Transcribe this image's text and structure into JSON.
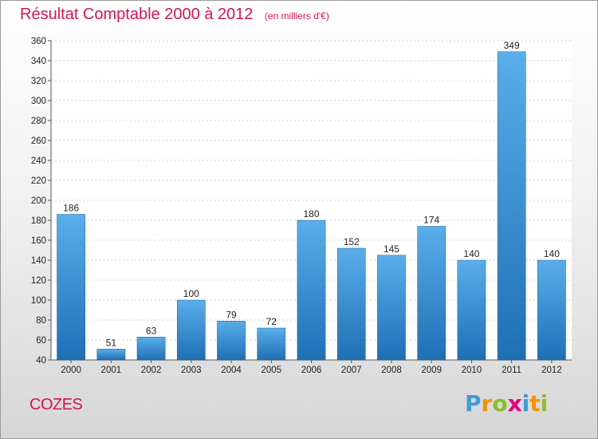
{
  "chart_data": {
    "type": "bar",
    "title": "Résultat Comptable 2000 à 2012",
    "subtitle": "(en milliers d'€)",
    "categories": [
      "2000",
      "2001",
      "2002",
      "2003",
      "2004",
      "2005",
      "2006",
      "2007",
      "2008",
      "2009",
      "2010",
      "2011",
      "2012"
    ],
    "values": [
      186,
      51,
      63,
      100,
      79,
      72,
      180,
      152,
      145,
      174,
      140,
      349,
      140
    ],
    "ylim": [
      40,
      360
    ],
    "yticks": [
      40,
      60,
      80,
      100,
      120,
      140,
      160,
      180,
      200,
      220,
      240,
      260,
      280,
      300,
      320,
      340,
      360
    ],
    "grid": true,
    "bar_color": "#3a8fd8",
    "title_color": "#d4145a"
  },
  "commune": "COZES",
  "logo": {
    "text": "Proxiti",
    "letter_colors": [
      "#3f9ad6",
      "#f39200",
      "#8bbd2c",
      "#e5007e",
      "#3f9ad6",
      "#f39200",
      "#8bbd2c"
    ]
  }
}
